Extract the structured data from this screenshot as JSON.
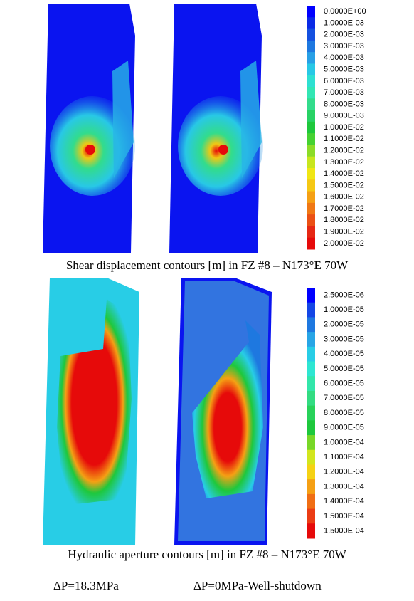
{
  "panels": [
    {
      "legend": [
        {
          "label": "0.0000E+00",
          "color": "#0000ff"
        },
        {
          "label": "1.0000E-03",
          "color": "#0a2ae6"
        },
        {
          "label": "2.0000E-03",
          "color": "#1450e0"
        },
        {
          "label": "3.0000E-03",
          "color": "#1e78e0"
        },
        {
          "label": "4.0000E-03",
          "color": "#28a0e6"
        },
        {
          "label": "5.0000E-03",
          "color": "#28c8e6"
        },
        {
          "label": "6.0000E-03",
          "color": "#2ee0d2"
        },
        {
          "label": "7.0000E-03",
          "color": "#32e6b4"
        },
        {
          "label": "8.0000E-03",
          "color": "#32dc8c"
        },
        {
          "label": "9.0000E-03",
          "color": "#28d264"
        },
        {
          "label": "1.0000E-02",
          "color": "#1ec83c"
        },
        {
          "label": "1.1000E-02",
          "color": "#46d232"
        },
        {
          "label": "1.2000E-02",
          "color": "#8cdc28"
        },
        {
          "label": "1.3000E-02",
          "color": "#c8e61e"
        },
        {
          "label": "1.4000E-02",
          "color": "#f0e614"
        },
        {
          "label": "1.5000E-02",
          "color": "#f5c814"
        },
        {
          "label": "1.6000E-02",
          "color": "#f5a014"
        },
        {
          "label": "1.7000E-02",
          "color": "#f07814"
        },
        {
          "label": "1.8000E-02",
          "color": "#eb5014"
        },
        {
          "label": "1.9000E-02",
          "color": "#e62814"
        },
        {
          "label": "2.0000E-02",
          "color": "#e60a0a"
        }
      ],
      "caption": "Shear displacement contours [m] in FZ #8 – N173°E 70W"
    },
    {
      "legend": [
        {
          "label": "2.5000E-06",
          "color": "#0000ff"
        },
        {
          "label": "1.0000E-05",
          "color": "#1446e6"
        },
        {
          "label": "2.0000E-05",
          "color": "#1e78e0"
        },
        {
          "label": "3.0000E-05",
          "color": "#28a5e6"
        },
        {
          "label": "4.0000E-05",
          "color": "#28cde6"
        },
        {
          "label": "5.0000E-05",
          "color": "#2ee6d2"
        },
        {
          "label": "6.0000E-05",
          "color": "#32e6aa"
        },
        {
          "label": "7.0000E-05",
          "color": "#32dc82"
        },
        {
          "label": "8.0000E-05",
          "color": "#28d25a"
        },
        {
          "label": "9.0000E-05",
          "color": "#1ec83c"
        },
        {
          "label": "1.0000E-04",
          "color": "#78d728"
        },
        {
          "label": "1.1000E-04",
          "color": "#d2e61e"
        },
        {
          "label": "1.2000E-04",
          "color": "#f5d214"
        },
        {
          "label": "1.3000E-04",
          "color": "#f5a014"
        },
        {
          "label": "1.4000E-04",
          "color": "#f06e14"
        },
        {
          "label": "1.5000E-04",
          "color": "#eb3c14"
        },
        {
          "label": "1.5000E-04",
          "color": "#e60a0a"
        }
      ],
      "caption": "Hydraulic aperture contours [m] in FZ #8 – N173°E 70W"
    }
  ],
  "conditions": [
    "ΔP=18.3MPa",
    "ΔP=0MPa-Well-shutdown"
  ]
}
